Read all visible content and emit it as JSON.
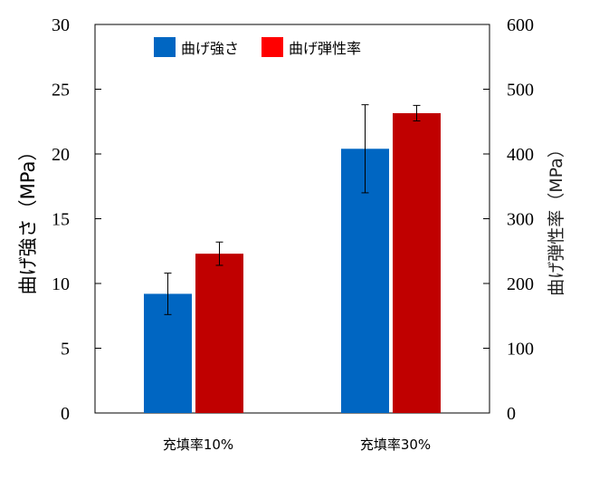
{
  "chart_data": {
    "type": "bar",
    "categories": [
      "充填率10%",
      "充填率30%"
    ],
    "series": [
      {
        "name": "曲げ強さ",
        "axis": "left",
        "color": "#0066C2",
        "values": [
          9.2,
          20.4
        ],
        "errors": [
          1.6,
          3.4
        ]
      },
      {
        "name": "曲げ弾性率",
        "axis": "right",
        "color": "#C00000",
        "values": [
          246,
          463
        ],
        "errors": [
          18,
          12
        ]
      }
    ],
    "y_left": {
      "label": "曲げ強さ（MPa）",
      "ylim": [
        0,
        30
      ],
      "ticks": [
        "0",
        "5",
        "10",
        "15",
        "20",
        "25",
        "30"
      ]
    },
    "y_right": {
      "label": "曲げ弾性率（MPa）",
      "ylim": [
        0,
        600
      ],
      "ticks": [
        "0",
        "100",
        "200",
        "300",
        "400",
        "500",
        "600"
      ]
    },
    "legend": {
      "position": "top-center",
      "items": [
        {
          "label": "曲げ強さ",
          "color": "#0066C2"
        },
        {
          "label": "曲げ弾性率",
          "color": "#FF0000"
        }
      ]
    },
    "grid": false
  }
}
